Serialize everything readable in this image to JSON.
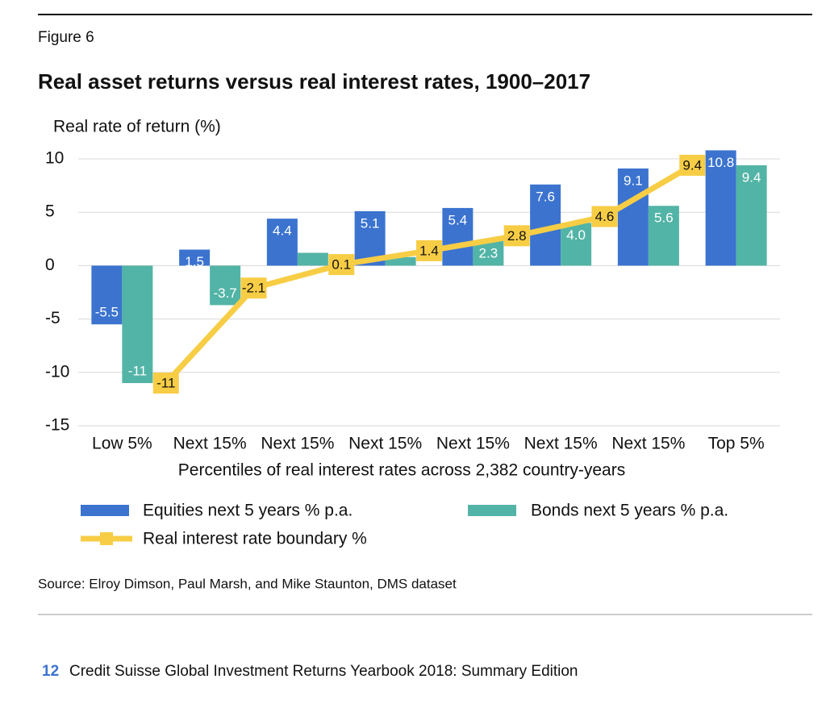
{
  "figure_label": "Figure 6",
  "source": "Source: Elroy Dimson, Paul Marsh, and Mike Staunton, DMS dataset",
  "footer": {
    "page": "12",
    "text": "Credit Suisse Global Investment Returns Yearbook 2018: Summary Edition"
  },
  "chart_data": {
    "type": "bar",
    "title": "Real asset returns versus real interest rates, 1900–2017",
    "y_label": "Real rate of return (%)",
    "x_label": "Percentiles of real interest rates across 2,382 country-years",
    "categories": [
      "Low 5%",
      "Next 15%",
      "Next 15%",
      "Next 15%",
      "Next 15%",
      "Next 15%",
      "Next 15%",
      "Top 5%"
    ],
    "series": [
      {
        "name": "Equities next 5 years % p.a.",
        "color": "#3b73cf",
        "values": [
          -5.5,
          1.5,
          4.4,
          5.1,
          5.4,
          7.6,
          9.1,
          10.8
        ]
      },
      {
        "name": "Bonds next 5 years % p.a.",
        "color": "#52b4a6",
        "values": [
          -11,
          -3.7,
          1.2,
          0.8,
          2.3,
          4,
          5.6,
          9.4
        ],
        "value_labels": [
          "-11",
          "-3.7",
          null,
          null,
          "2.3",
          "4.0",
          "5.6",
          "9.4"
        ]
      }
    ],
    "boundary_line": {
      "name": "Real interest rate boundary %",
      "color": "#f7cd45",
      "values": [
        -11,
        -2.1,
        0.1,
        1.4,
        2.8,
        4.6,
        9.4
      ]
    },
    "ylim": [
      -15,
      10
    ],
    "yticks": [
      -15,
      -10,
      -5,
      0,
      5,
      10
    ],
    "grid": true
  }
}
